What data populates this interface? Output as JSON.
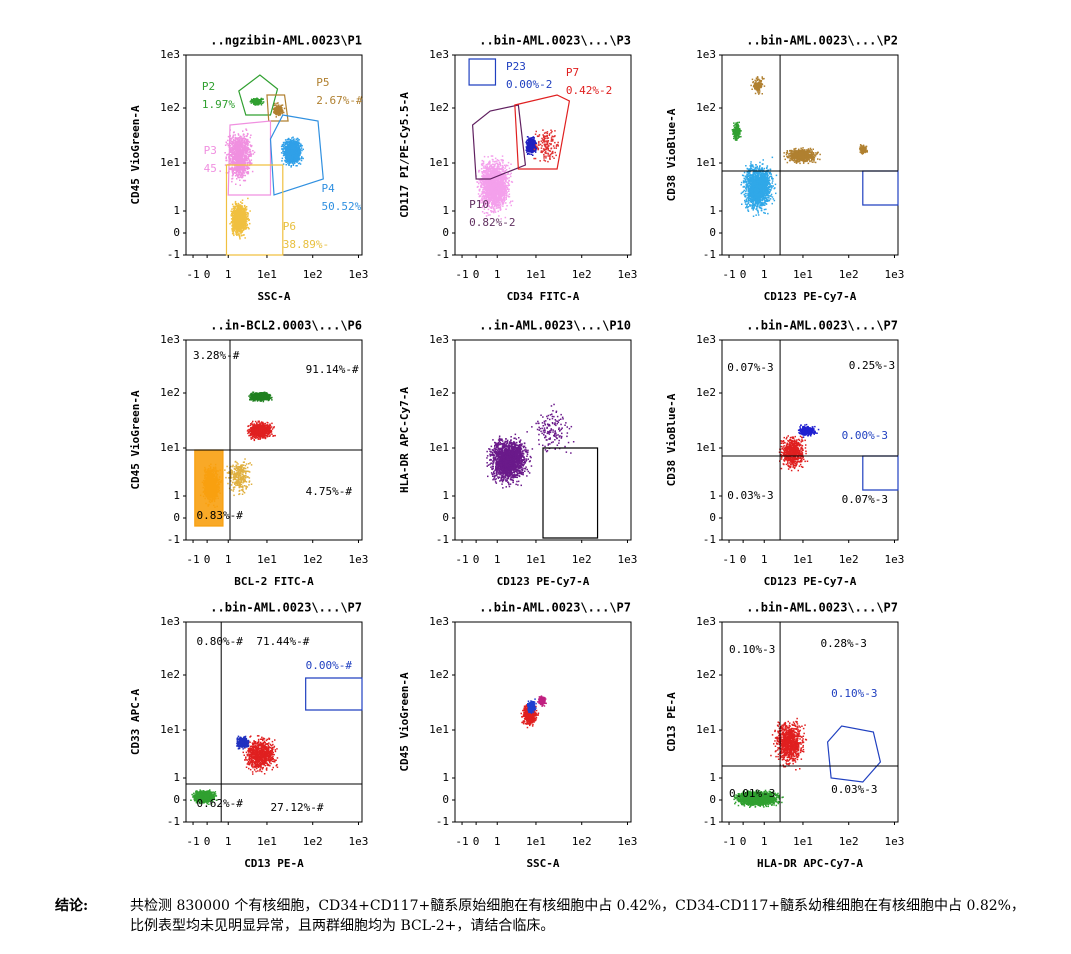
{
  "panels": [
    {
      "title": "..ngzibin-AML.0023\\P1",
      "ylabel": "CD45 VioGreen-A",
      "xlabel": "SSC-A",
      "xticks": [
        "-1",
        "0",
        "1",
        "1e1",
        "1e2",
        "1e3"
      ],
      "yticks": [
        "1e3",
        "1e2",
        "1e1",
        "1",
        "0",
        "-1"
      ],
      "labels": [
        "P2",
        "1.97%",
        "P5",
        "2.67%-#",
        "P3",
        "45.",
        "P4",
        "50.52%",
        "P6",
        "38.89%-"
      ]
    },
    {
      "title": "..bin-AML.0023\\...\\P3",
      "ylabel": "CD117 PI/PE-Cy5.5-A",
      "xlabel": "CD34 FITC-A",
      "xticks": [
        "-1",
        "0",
        "1",
        "1e1",
        "1e2",
        "1e3"
      ],
      "yticks": [
        "1e3",
        "1e2",
        "1e1",
        "1",
        "0",
        "-1"
      ],
      "labels": [
        "P23",
        "0.00%-2",
        "P7",
        "0.42%-2",
        "P10",
        "0.82%-2"
      ]
    },
    {
      "title": "..bin-AML.0023\\...\\P2",
      "ylabel": "CD38 VioBlue-A",
      "xlabel": "CD123 PE-Cy7-A",
      "xticks": [
        "-1",
        "0",
        "1",
        "1e1",
        "1e2",
        "1e3"
      ],
      "yticks": [
        "1e3",
        "1e2",
        "1e1",
        "1",
        "0",
        "-1"
      ],
      "labels": []
    },
    {
      "title": "..in-BCL2.0003\\...\\P6",
      "ylabel": "CD45 VioGreen-A",
      "xlabel": "BCL-2 FITC-A",
      "xticks": [
        "-1",
        "0",
        "1",
        "1e1",
        "1e2",
        "1e3"
      ],
      "yticks": [
        "1e3",
        "1e2",
        "1e1",
        "1",
        "0",
        "-1"
      ],
      "labels": [
        "3.28%-#",
        "91.14%-#",
        "4.75%-#",
        "0.83%-#"
      ]
    },
    {
      "title": "..in-AML.0023\\...\\P10",
      "ylabel": "HLA-DR APC-Cy7-A",
      "xlabel": "CD123 PE-Cy7-A",
      "xticks": [
        "-1",
        "0",
        "1",
        "1e1",
        "1e2",
        "1e3"
      ],
      "yticks": [
        "1e3",
        "1e2",
        "1e1",
        "1",
        "0",
        "-1"
      ],
      "labels": []
    },
    {
      "title": "..bin-AML.0023\\...\\P7",
      "ylabel": "CD38 VioBlue-A",
      "xlabel": "CD123 PE-Cy7-A",
      "xticks": [
        "-1",
        "0",
        "1",
        "1e1",
        "1e2",
        "1e3"
      ],
      "yticks": [
        "1e3",
        "1e2",
        "1e1",
        "1",
        "0",
        "-1"
      ],
      "labels": [
        "0.07%-3",
        "0.25%-3",
        "0.00%-3",
        "0.03%-3",
        "0.07%-3"
      ]
    },
    {
      "title": "..bin-AML.0023\\...\\P7",
      "ylabel": "CD33 APC-A",
      "xlabel": "CD13 PE-A",
      "xticks": [
        "-1",
        "0",
        "1",
        "1e1",
        "1e2",
        "1e3"
      ],
      "yticks": [
        "1e3",
        "1e2",
        "1e1",
        "1",
        "0",
        "-1"
      ],
      "labels": [
        "0.80%-#",
        "71.44%-#",
        "0.00%-#",
        "0.62%-#",
        "27.12%-#"
      ]
    },
    {
      "title": "..bin-AML.0023\\...\\P7",
      "ylabel": "CD45 VioGreen-A",
      "xlabel": "SSC-A",
      "xticks": [
        "-1",
        "0",
        "1",
        "1e1",
        "1e2",
        "1e3"
      ],
      "yticks": [
        "1e3",
        "1e2",
        "1e1",
        "1",
        "0",
        "-1"
      ],
      "labels": []
    },
    {
      "title": "..bin-AML.0023\\...\\P7",
      "ylabel": "CD13 PE-A",
      "xlabel": "HLA-DR APC-Cy7-A",
      "xticks": [
        "-1",
        "0",
        "1",
        "1e1",
        "1e2",
        "1e3"
      ],
      "yticks": [
        "1e3",
        "1e2",
        "1e1",
        "1",
        "0",
        "-1"
      ],
      "labels": [
        "0.10%-3",
        "0.28%-3",
        "0.10%-3",
        "0.01%-3",
        "0.03%-3"
      ]
    }
  ],
  "conclusion": {
    "label": "结论:",
    "text": "共检测 830000 个有核细胞，CD34+CD117+髓系原始细胞在有核细胞中占 0.42%，CD34-CD117+髓系幼稚细胞在有核细胞中占 0.82%，比例表型均未见明显异常，且两群细胞均为 BCL-2+，请结合临床。"
  }
}
